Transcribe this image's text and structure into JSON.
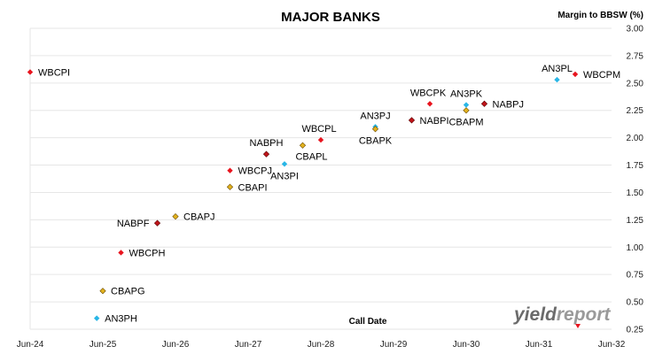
{
  "chart_data": {
    "type": "scatter",
    "title": "MAJOR BANKS",
    "ylabel": "Margin to BBSW (%)",
    "xlabel": "Call Date",
    "x_ticks": [
      "Jun-24",
      "Jun-25",
      "Jun-26",
      "Jun-27",
      "Jun-28",
      "Jun-29",
      "Jun-30",
      "Jun-31",
      "Jun-32"
    ],
    "x_range": [
      "2024-06",
      "2032-06"
    ],
    "ylim": [
      0.25,
      3.0
    ],
    "y_ticks": [
      "0.25",
      "0.50",
      "0.75",
      "1.00",
      "1.25",
      "1.50",
      "1.75",
      "2.00",
      "2.25",
      "2.50",
      "2.75",
      "3.00"
    ],
    "y_axis_side": "right",
    "grid": "horizontal",
    "colors": {
      "WBC": "#e8141e",
      "NAB": "#c0141a",
      "CBA": "#e2b21e",
      "ANZ": "#29b6e6"
    },
    "points": [
      {
        "label": "WBCPI",
        "x": "2024-06",
        "y": 2.6,
        "issuer": "WBC",
        "label_pos": "right"
      },
      {
        "label": "AN3PH",
        "x": "2025-05",
        "y": 0.35,
        "issuer": "ANZ",
        "label_pos": "right"
      },
      {
        "label": "CBAPG",
        "x": "2025-06",
        "y": 0.6,
        "issuer": "CBA",
        "label_pos": "right"
      },
      {
        "label": "WBCPH",
        "x": "2025-09",
        "y": 0.95,
        "issuer": "WBC",
        "label_pos": "right"
      },
      {
        "label": "NABPF",
        "x": "2026-03",
        "y": 1.22,
        "issuer": "NAB",
        "label_pos": "left"
      },
      {
        "label": "CBAPJ",
        "x": "2026-06",
        "y": 1.28,
        "issuer": "CBA",
        "label_pos": "right"
      },
      {
        "label": "WBCPJ",
        "x": "2027-03",
        "y": 1.7,
        "issuer": "WBC",
        "label_pos": "right"
      },
      {
        "label": "CBAPI",
        "x": "2027-03",
        "y": 1.55,
        "issuer": "CBA",
        "label_pos": "right"
      },
      {
        "label": "NABPH",
        "x": "2027-09",
        "y": 1.85,
        "issuer": "NAB",
        "label_pos": "above"
      },
      {
        "label": "AN3PI",
        "x": "2027-12",
        "y": 1.76,
        "issuer": "ANZ",
        "label_pos": "below"
      },
      {
        "label": "CBAPL",
        "x": "2028-03",
        "y": 1.93,
        "issuer": "CBA",
        "label_pos": "below-right"
      },
      {
        "label": "WBCPL",
        "x": "2028-06",
        "y": 1.98,
        "issuer": "WBC",
        "label_pos": "above-left"
      },
      {
        "label": "AN3PJ",
        "x": "2029-03",
        "y": 2.1,
        "issuer": "ANZ",
        "label_pos": "above"
      },
      {
        "label": "CBAPK",
        "x": "2029-03",
        "y": 2.08,
        "issuer": "CBA",
        "label_pos": "below"
      },
      {
        "label": "NABPI",
        "x": "2029-09",
        "y": 2.16,
        "issuer": "NAB",
        "label_pos": "right"
      },
      {
        "label": "WBCPK",
        "x": "2029-12",
        "y": 2.31,
        "issuer": "WBC",
        "label_pos": "above-left"
      },
      {
        "label": "CBAPM",
        "x": "2030-06",
        "y": 2.25,
        "issuer": "CBA",
        "label_pos": "below"
      },
      {
        "label": "AN3PK",
        "x": "2030-06",
        "y": 2.3,
        "issuer": "ANZ",
        "label_pos": "above"
      },
      {
        "label": "NABPJ",
        "x": "2030-09",
        "y": 2.31,
        "issuer": "NAB",
        "label_pos": "right"
      },
      {
        "label": "AN3PL",
        "x": "2031-09",
        "y": 2.53,
        "issuer": "ANZ",
        "label_pos": "above"
      },
      {
        "label": "WBCPM",
        "x": "2031-12",
        "y": 2.58,
        "issuer": "WBC",
        "label_pos": "right"
      }
    ]
  },
  "watermark": {
    "part1": "yield",
    "part2": "report"
  }
}
